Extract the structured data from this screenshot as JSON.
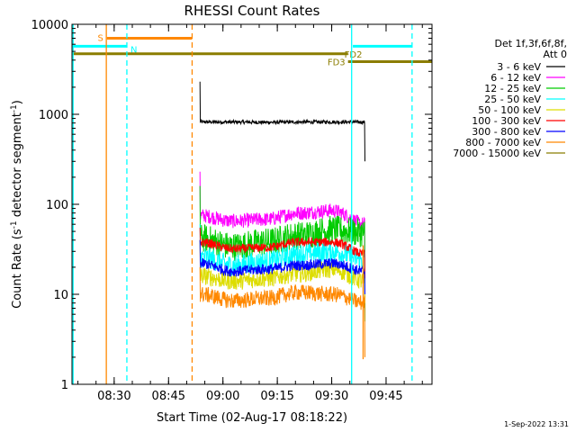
{
  "chart_data": {
    "type": "line",
    "title": "RHESSI Count Rates",
    "xlabel": "Start Time (02-Aug-17 08:18:22)",
    "ylabel_main": "Count Rate (s",
    "ylabel_sup": "-1",
    "ylabel_mid": " detector segment",
    "ylabel_sup2": "-1",
    "ylabel_end": ")",
    "yscale": "log",
    "ylim": [
      1,
      10000
    ],
    "xlim": [
      "08:18:22",
      "09:57:40"
    ],
    "xticks": [
      "08:30",
      "08:45",
      "09:00",
      "09:15",
      "09:30",
      "09:45"
    ],
    "yticks": [
      "1",
      "10",
      "100",
      "1000",
      "10000"
    ],
    "grid": false,
    "legend_position": "right",
    "legend_header": [
      "Det 1f,3f,6f,8f,",
      "Att 0"
    ],
    "series": [
      {
        "name": "3 - 6 keV",
        "color": "#000000",
        "t0": "08:53:40",
        "t1": "09:39:10",
        "level": [
          820,
          820,
          815,
          820,
          822,
          818
        ],
        "noise": 0.02,
        "spike_start": 2300,
        "drop_end": 300
      },
      {
        "name": "6 - 12 keV",
        "color": "#ff00ff",
        "t0": "08:53:40",
        "t1": "09:39:10",
        "level": [
          75,
          65,
          68,
          80,
          85,
          60
        ],
        "noise": 0.08,
        "spike_start": 230,
        "drop_end": 5
      },
      {
        "name": "12 - 25 keV",
        "color": "#00cc00",
        "t0": "08:53:40",
        "t1": "09:39:10",
        "level": [
          42,
          34,
          38,
          45,
          52,
          48
        ],
        "noise": 0.16,
        "spike_start": 160,
        "drop_end": 5
      },
      {
        "name": "25 - 50 keV",
        "color": "#00ffff",
        "t0": "08:53:40",
        "t1": "09:39:10",
        "level": [
          26,
          21,
          23,
          28,
          30,
          24
        ],
        "noise": 0.12,
        "spike_start": 60,
        "drop_end": 10
      },
      {
        "name": "50 - 100 keV",
        "color": "#dddd00",
        "t0": "08:53:40",
        "t1": "09:39:10",
        "level": [
          16,
          14,
          15,
          17,
          19,
          14
        ],
        "noise": 0.1,
        "spike_start": 40,
        "drop_end": 8
      },
      {
        "name": "100 - 300 keV",
        "color": "#ff0000",
        "t0": "08:53:40",
        "t1": "09:39:10",
        "level": [
          38,
          32,
          33,
          38,
          38,
          28
        ],
        "noise": 0.05,
        "spike_start": 55,
        "drop_end": 15
      },
      {
        "name": "300 - 800 keV",
        "color": "#0000ff",
        "t0": "08:53:40",
        "t1": "09:39:10",
        "level": [
          22,
          18,
          19,
          21,
          22,
          18
        ],
        "noise": 0.06,
        "spike_start": 40,
        "drop_end": 10
      },
      {
        "name": "800 - 7000 keV",
        "color": "#ff8800",
        "t0": "08:53:40",
        "t1": "09:39:10",
        "level": [
          10,
          8.5,
          9,
          10.5,
          10,
          8
        ],
        "noise": 0.09,
        "spike_start": 20,
        "drop_end": 2
      },
      {
        "name": "7000 - 15000 keV",
        "color": "#8b7d00",
        "t0": "08:53:40",
        "t1": "09:39:10",
        "level": [],
        "noise": 0,
        "spike_start": 0,
        "drop_end": 0
      }
    ],
    "flag_bars": [
      {
        "label": "S",
        "color": "#ff8800",
        "t0": "08:28:00",
        "t1": "08:51:30",
        "y": 7000
      },
      {
        "label": "N",
        "color": "#00ffff",
        "t0": "08:18:22",
        "t1": "08:33:30",
        "y": 5700
      },
      {
        "label": "FD2",
        "color": "#8b7d00",
        "t0": "08:18:22",
        "t1": "09:34:30",
        "y": 4700
      },
      {
        "label": "FD3",
        "color": "#8b7d00",
        "t0": "09:34:30",
        "t1": "09:57:40",
        "y": 3850
      },
      {
        "label": "",
        "color": "#00ffff",
        "t0": "09:35:50",
        "t1": "09:52:10",
        "y": 5700
      }
    ],
    "vertical_lines": [
      {
        "t": "08:18:40",
        "color": "#00ffff",
        "style": "solid"
      },
      {
        "t": "08:27:50",
        "color": "#ff8800",
        "style": "solid"
      },
      {
        "t": "08:33:30",
        "color": "#00ffff",
        "style": "dashed"
      },
      {
        "t": "08:51:30",
        "color": "#ff8800",
        "style": "dashed"
      },
      {
        "t": "09:35:30",
        "color": "#00ffff",
        "style": "solid"
      },
      {
        "t": "09:52:10",
        "color": "#00ffff",
        "style": "dashed"
      },
      {
        "t": "09:38:40",
        "color": "#ff8800",
        "style": "solid",
        "ymin": 1.9,
        "ymax": 35
      }
    ],
    "footer": "1-Sep-2022 13:31"
  }
}
